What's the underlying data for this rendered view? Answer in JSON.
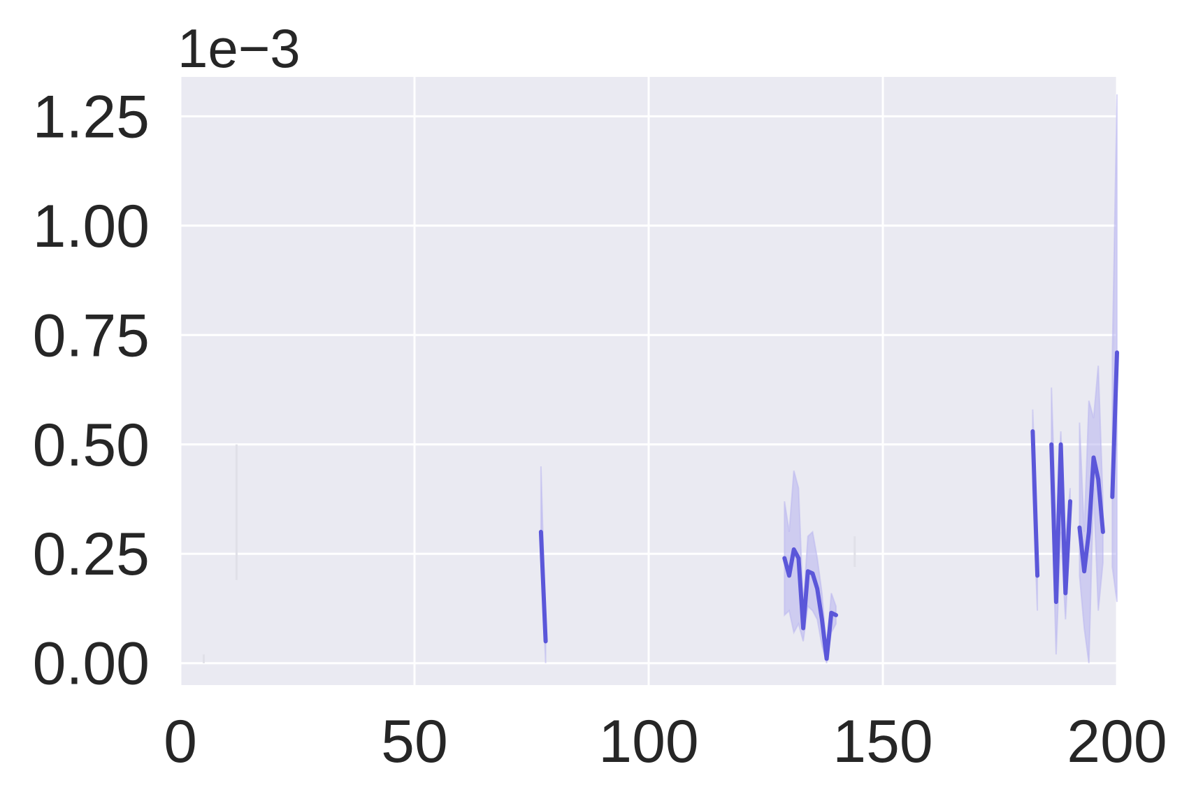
{
  "chart_data": {
    "type": "line",
    "title": "",
    "xlabel": "",
    "ylabel": "",
    "y_scale_label": "1e−3",
    "xlim": [
      0,
      200
    ],
    "ylim": [
      -5e-05,
      0.00134
    ],
    "grid": true,
    "legend": "none",
    "colors": {
      "background": "#eaeaf2",
      "grid": "#ffffff",
      "line": "#5b57d9",
      "band": "#b7b3ef",
      "text": "#262626"
    },
    "x_ticks": [
      {
        "value": 0,
        "label": "0"
      },
      {
        "value": 50,
        "label": "50"
      },
      {
        "value": 100,
        "label": "100"
      },
      {
        "value": 150,
        "label": "150"
      },
      {
        "value": 200,
        "label": "200"
      }
    ],
    "y_ticks": [
      {
        "value": 0.0,
        "label": "0.00"
      },
      {
        "value": 0.00025,
        "label": "0.25"
      },
      {
        "value": 0.0005,
        "label": "0.50"
      },
      {
        "value": 0.00075,
        "label": "0.75"
      },
      {
        "value": 0.001,
        "label": "1.00"
      },
      {
        "value": 0.00125,
        "label": "1.25"
      }
    ],
    "series": [
      {
        "segments": [
          {
            "x": [
              77,
              78
            ],
            "y": [
              0.0003,
              5e-05
            ],
            "lo": [
              0.00025,
              0.0
            ],
            "hi": [
              0.00045,
              8e-05
            ]
          },
          {
            "x": [
              129,
              130,
              131,
              132,
              133,
              134,
              135,
              136,
              137,
              138,
              139,
              140
            ],
            "y": [
              0.00024,
              0.0002,
              0.00026,
              0.00024,
              8e-05,
              0.00021,
              0.000205,
              0.00017,
              0.0001,
              1e-05,
              0.000115,
              0.00011
            ],
            "lo": [
              0.00011,
              0.00012,
              7e-05,
              9e-05,
              5e-05,
              0.00013,
              0.00012,
              0.0001,
              4e-05,
              0.0,
              7e-05,
              9e-05
            ],
            "hi": [
              0.00037,
              0.0003,
              0.00044,
              0.0004,
              0.00013,
              0.00029,
              0.0003,
              0.00024,
              0.00016,
              3e-05,
              0.00016,
              0.00013
            ]
          },
          {
            "x": [
              182,
              183
            ],
            "y": [
              0.00053,
              0.0002
            ],
            "lo": [
              0.0004,
              0.00012
            ],
            "hi": [
              0.00058,
              0.00028
            ]
          },
          {
            "x": [
              186,
              187,
              188,
              189,
              190
            ],
            "y": [
              0.0005,
              0.00014,
              0.0005,
              0.00016,
              0.00037
            ],
            "lo": [
              0.0004,
              2e-05,
              0.0003,
              0.0001,
              0.0003
            ],
            "hi": [
              0.00063,
              0.0003,
              0.00053,
              0.00028,
              0.0004
            ]
          },
          {
            "x": [
              192,
              193,
              194,
              195,
              196,
              197
            ],
            "y": [
              0.00031,
              0.00021,
              0.0003,
              0.00047,
              0.00042,
              0.0003
            ],
            "lo": [
              0.0002,
              8e-05,
              0.0,
              0.0004,
              0.00012,
              0.00023
            ],
            "hi": [
              0.00055,
              0.0003,
              0.0006,
              0.00056,
              0.00068,
              0.00037
            ]
          },
          {
            "x": [
              199,
              200
            ],
            "y": [
              0.00038,
              0.00071
            ],
            "lo": [
              0.00022,
              0.00014
            ],
            "hi": [
              0.0007,
              0.0013
            ]
          }
        ],
        "faint_bands": [
          {
            "x": [
              5,
              5
            ],
            "lo": [
              0.0,
              0.0
            ],
            "hi": [
              2e-05,
              2e-05
            ]
          },
          {
            "x": [
              12,
              12
            ],
            "lo": [
              0.00019,
              0.00019
            ],
            "hi": [
              0.0005,
              0.0005
            ]
          },
          {
            "x": [
              144,
              144
            ],
            "lo": [
              0.00022,
              0.00022
            ],
            "hi": [
              0.00029,
              0.00029
            ]
          }
        ]
      }
    ]
  }
}
